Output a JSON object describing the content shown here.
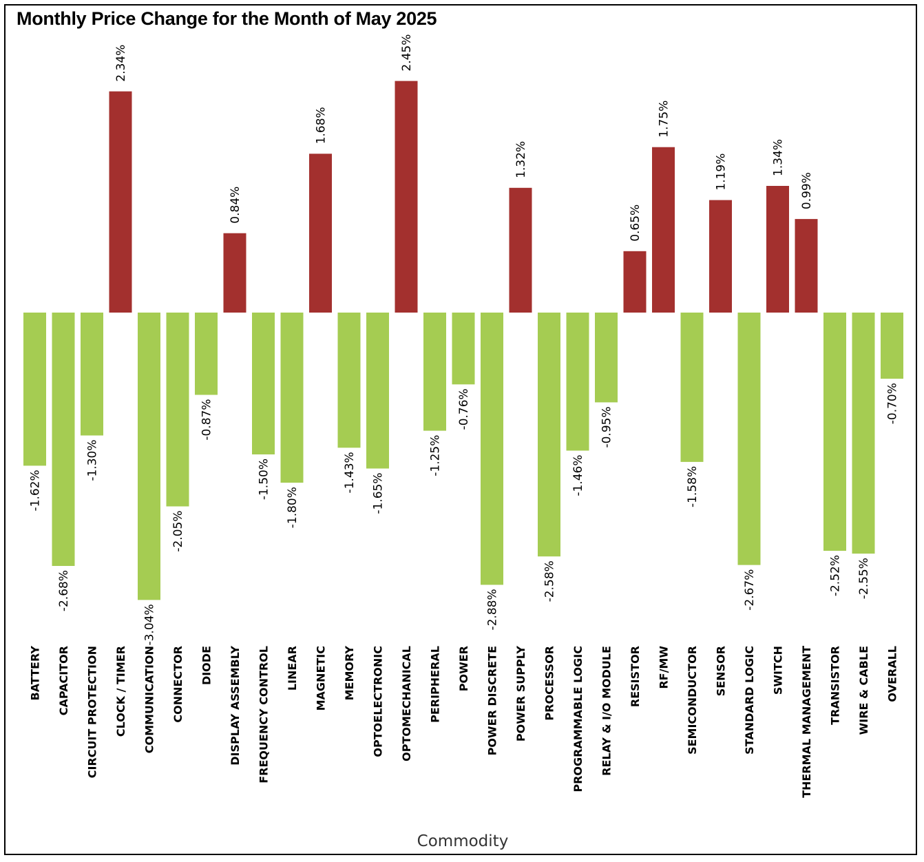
{
  "chart_data": {
    "type": "bar",
    "title": "Monthly Price Change for the Month of May 2025",
    "xlabel": "Commodity",
    "ylabel": "",
    "ylim": [
      -3.04,
      2.45
    ],
    "grid": false,
    "colors": {
      "positive": "#a3302e",
      "negative": "#a5cc52"
    },
    "categories": [
      "BATTERY",
      "CAPACITOR",
      "CIRCUIT PROTECTION",
      "CLOCK / TIMER",
      "COMMUNICATION",
      "CONNECTOR",
      "DIODE",
      "DISPLAY ASSEMBLY",
      "FREQUENCY CONTROL",
      "LINEAR",
      "MAGNETIC",
      "MEMORY",
      "OPTOELECTRONIC",
      "OPTOMECHANICAL",
      "PERIPHERAL",
      "POWER",
      "POWER DISCRETE",
      "POWER SUPPLY",
      "PROCESSOR",
      "PROGRAMMABLE LOGIC",
      "RELAY & I/O MODULE",
      "RESISTOR",
      "RF/MW",
      "SEMICONDUCTOR",
      "SENSOR",
      "STANDARD LOGIC",
      "SWITCH",
      "THERMAL MANAGEMENT",
      "TRANSISTOR",
      "WIRE & CABLE",
      "OVERALL"
    ],
    "values": [
      -1.62,
      -2.68,
      -1.3,
      2.34,
      -3.04,
      -2.05,
      -0.87,
      0.84,
      -1.5,
      -1.8,
      1.68,
      -1.43,
      -1.65,
      2.45,
      -1.25,
      -0.76,
      -2.88,
      1.32,
      -2.58,
      -1.46,
      -0.95,
      0.65,
      1.75,
      -1.58,
      1.19,
      -2.67,
      1.34,
      0.99,
      -2.52,
      -2.55,
      -0.7
    ],
    "data_labels": [
      "-1.62%",
      "-2.68%",
      "-1.30%",
      "2.34%",
      "-3.04%",
      "-2.05%",
      "-0.87%",
      "0.84%",
      "-1.50%",
      "-1.80%",
      "1.68%",
      "-1.43%",
      "-1.65%",
      "2.45%",
      "-1.25%",
      "-0.76%",
      "-2.88%",
      "1.32%",
      "-2.58%",
      "-1.46%",
      "-0.95%",
      "0.65%",
      "1.75%",
      "-1.58%",
      "1.19%",
      "-2.67%",
      "1.34%",
      "0.99%",
      "-2.52%",
      "-2.55%",
      "-0.70%"
    ]
  }
}
